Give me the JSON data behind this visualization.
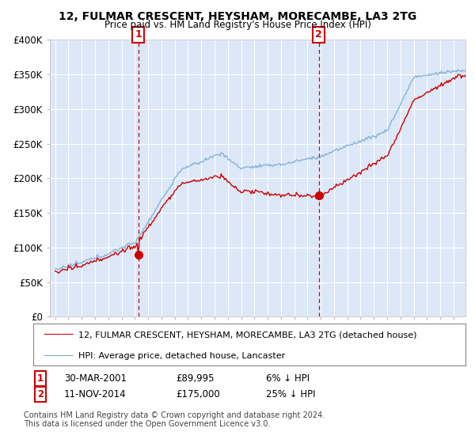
{
  "title": "12, FULMAR CRESCENT, HEYSHAM, MORECAMBE, LA3 2TG",
  "subtitle": "Price paid vs. HM Land Registry's House Price Index (HPI)",
  "ylim": [
    0,
    400000
  ],
  "yticks": [
    0,
    50000,
    100000,
    150000,
    200000,
    250000,
    300000,
    350000,
    400000
  ],
  "ytick_labels": [
    "£0",
    "£50K",
    "£100K",
    "£150K",
    "£200K",
    "£250K",
    "£300K",
    "£350K",
    "£400K"
  ],
  "plot_background": "#dce8f8",
  "grid_color": "#ffffff",
  "transaction1": {
    "date": "30-MAR-2001",
    "price": 89995,
    "label": "1",
    "year": 2001.25
  },
  "transaction2": {
    "date": "11-NOV-2014",
    "price": 175000,
    "label": "2",
    "year": 2014.85
  },
  "legend_line1": "12, FULMAR CRESCENT, HEYSHAM, MORECAMBE, LA3 2TG (detached house)",
  "legend_line2": "HPI: Average price, detached house, Lancaster",
  "footnote1": "Contains HM Land Registry data © Crown copyright and database right 2024.",
  "footnote2": "This data is licensed under the Open Government Licence v3.0.",
  "red_color": "#cc0000",
  "blue_color": "#7aadd4",
  "t1_pct": "6%",
  "t2_pct": "25%"
}
